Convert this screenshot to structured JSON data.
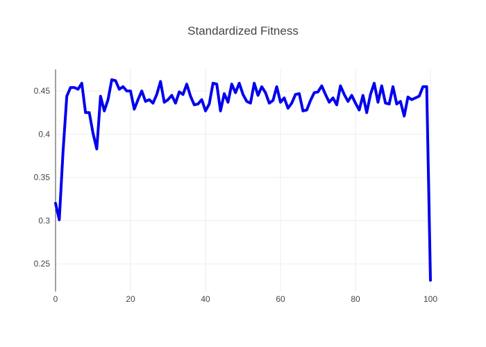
{
  "chart_data": {
    "type": "line",
    "title": "Standardized Fitness",
    "xlabel": "",
    "ylabel": "",
    "xlim": [
      0,
      100
    ],
    "ylim": [
      0.218,
      0.475
    ],
    "xticks": [
      0,
      20,
      40,
      60,
      80,
      100
    ],
    "yticks": [
      0.25,
      0.3,
      0.35,
      0.4,
      0.45
    ],
    "ytick_labels": [
      "0.25",
      "0.3",
      "0.35",
      "0.4",
      "0.45"
    ],
    "grid": true,
    "series": [
      {
        "color": "#0000ee",
        "x": [
          0,
          1,
          2,
          3,
          4,
          5,
          6,
          7,
          8,
          9,
          10,
          11,
          12,
          13,
          14,
          15,
          16,
          17,
          18,
          19,
          20,
          21,
          22,
          23,
          24,
          25,
          26,
          27,
          28,
          29,
          30,
          31,
          32,
          33,
          34,
          35,
          36,
          37,
          38,
          39,
          40,
          41,
          42,
          43,
          44,
          45,
          46,
          47,
          48,
          49,
          50,
          51,
          52,
          53,
          54,
          55,
          56,
          57,
          58,
          59,
          60,
          61,
          62,
          63,
          64,
          65,
          66,
          67,
          68,
          69,
          70,
          71,
          72,
          73,
          74,
          75,
          76,
          77,
          78,
          79,
          80,
          81,
          82,
          83,
          84,
          85,
          86,
          87,
          88,
          89,
          90,
          91,
          92,
          93,
          94,
          95,
          96,
          97,
          98,
          99,
          100
        ],
        "y": [
          0.32,
          0.301,
          0.38,
          0.444,
          0.454,
          0.454,
          0.452,
          0.459,
          0.425,
          0.425,
          0.401,
          0.383,
          0.444,
          0.427,
          0.44,
          0.463,
          0.462,
          0.452,
          0.455,
          0.45,
          0.45,
          0.429,
          0.44,
          0.45,
          0.438,
          0.44,
          0.436,
          0.446,
          0.461,
          0.437,
          0.44,
          0.445,
          0.436,
          0.449,
          0.446,
          0.458,
          0.444,
          0.434,
          0.435,
          0.44,
          0.427,
          0.435,
          0.459,
          0.458,
          0.427,
          0.447,
          0.437,
          0.458,
          0.448,
          0.459,
          0.446,
          0.438,
          0.436,
          0.459,
          0.445,
          0.455,
          0.448,
          0.436,
          0.439,
          0.455,
          0.437,
          0.442,
          0.43,
          0.436,
          0.446,
          0.447,
          0.427,
          0.428,
          0.439,
          0.448,
          0.449,
          0.456,
          0.446,
          0.437,
          0.442,
          0.434,
          0.456,
          0.446,
          0.438,
          0.445,
          0.436,
          0.428,
          0.445,
          0.425,
          0.446,
          0.459,
          0.437,
          0.456,
          0.436,
          0.435,
          0.455,
          0.435,
          0.438,
          0.421,
          0.443,
          0.44,
          0.442,
          0.444,
          0.455,
          0.455,
          0.231
        ]
      }
    ]
  }
}
